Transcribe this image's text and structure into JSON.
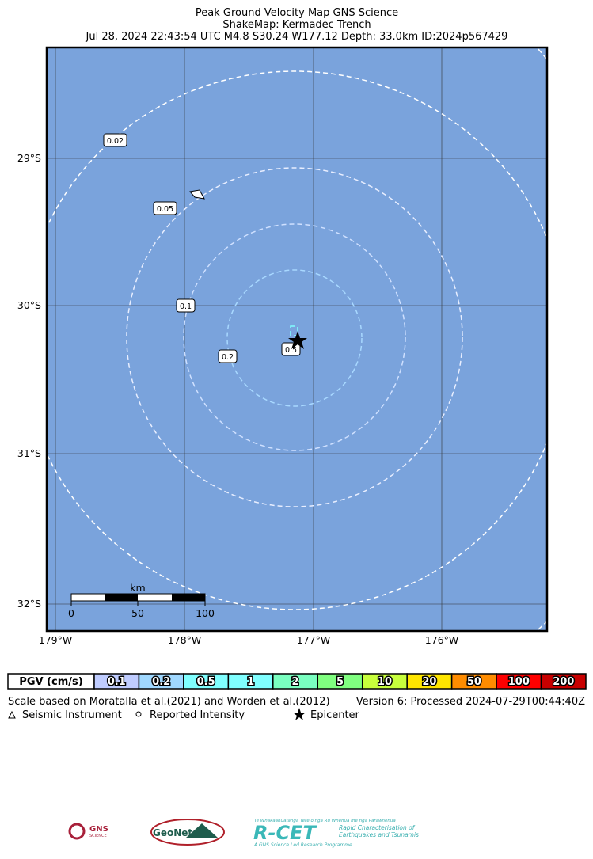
{
  "header": {
    "lines": [
      "Peak Ground Velocity Map GNS Science",
      "ShakeMap: Kermadec Trench",
      "Jul 28, 2024 22:43:54 UTC M4.8 S30.24 W177.12 Depth: 33.0km ID:2024p567429"
    ]
  },
  "map": {
    "lat_labels": [
      "29°S",
      "30°S",
      "31°S",
      "32°S"
    ],
    "lon_labels": [
      "179°W",
      "178°W",
      "177°W",
      "176°W"
    ],
    "contour_labels": [
      "0.02",
      "0.05",
      "0.1",
      "0.2",
      "0.5"
    ],
    "scale_bar": {
      "unit": "km",
      "ticks": [
        "0",
        "50",
        "100"
      ]
    }
  },
  "legend": {
    "label": "PGV (cm/s)",
    "bins": [
      {
        "label": "0.1",
        "color": "#bfccff"
      },
      {
        "label": "0.2",
        "color": "#a0d8ff"
      },
      {
        "label": "0.5",
        "color": "#80ffff"
      },
      {
        "label": "1",
        "color": "#80ffff"
      },
      {
        "label": "2",
        "color": "#7affc0"
      },
      {
        "label": "5",
        "color": "#80ff80"
      },
      {
        "label": "10",
        "color": "#c8ff3c"
      },
      {
        "label": "20",
        "color": "#ffe600"
      },
      {
        "label": "50",
        "color": "#ff8c00"
      },
      {
        "label": "100",
        "color": "#ff0000"
      },
      {
        "label": "200",
        "color": "#c80000"
      }
    ]
  },
  "footer": {
    "scale_note": "Scale based on Moratalla et al.(2021) and Worden et al.(2012)",
    "version": "Version 6: Processed 2024-07-29T00:44:40Z",
    "symbols": [
      "Seismic Instrument",
      "Reported Intensity",
      "Epicenter"
    ]
  },
  "logos": {
    "gns": [
      "GNS",
      "SCIENCE"
    ],
    "geonet": "GeoNet",
    "rcet": {
      "tagline": "Te Whakaahuatanga Tere o ngā Rū Whenua me ngā Parawhenua",
      "name": "R-CET",
      "desc": [
        "Rapid Characterisation of",
        "Earthquakes and Tsunamis"
      ],
      "footer": "A GNS Science Led Research Programme"
    }
  }
}
